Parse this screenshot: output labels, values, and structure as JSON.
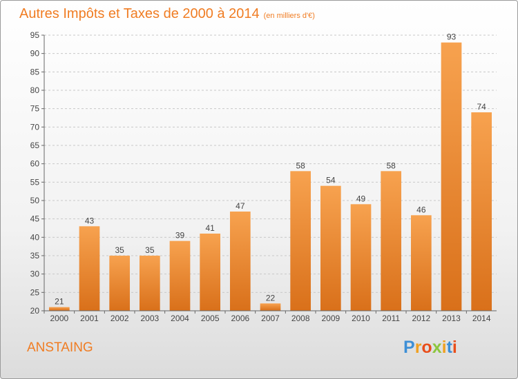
{
  "chart_data": {
    "type": "bar",
    "title": "Autres Impôts et Taxes de 2000 à 2014",
    "subtitle": "(en milliers d'€)",
    "categories": [
      "2000",
      "2001",
      "2002",
      "2003",
      "2004",
      "2005",
      "2006",
      "2007",
      "2008",
      "2009",
      "2010",
      "2011",
      "2012",
      "2013",
      "2014"
    ],
    "values": [
      21,
      43,
      35,
      35,
      39,
      41,
      47,
      22,
      58,
      54,
      49,
      58,
      46,
      93,
      74
    ],
    "ylim": [
      20,
      95
    ],
    "yticks": [
      20,
      25,
      30,
      35,
      40,
      45,
      50,
      55,
      60,
      65,
      70,
      75,
      80,
      85,
      90,
      95
    ],
    "grid": true,
    "bar_color_top": "#f7a24f",
    "bar_color_bottom": "#d9701a"
  },
  "location": "ANSTAING",
  "logo": {
    "letters": [
      "P",
      "r",
      "o",
      "x",
      "i",
      "t",
      "i"
    ],
    "colors": [
      "#3d8fd6",
      "#f0a020",
      "#e94e1b",
      "#8cc63f",
      "#f0a020",
      "#3d8fd6",
      "#e94e1b"
    ]
  },
  "accent_color": "#f07c22"
}
